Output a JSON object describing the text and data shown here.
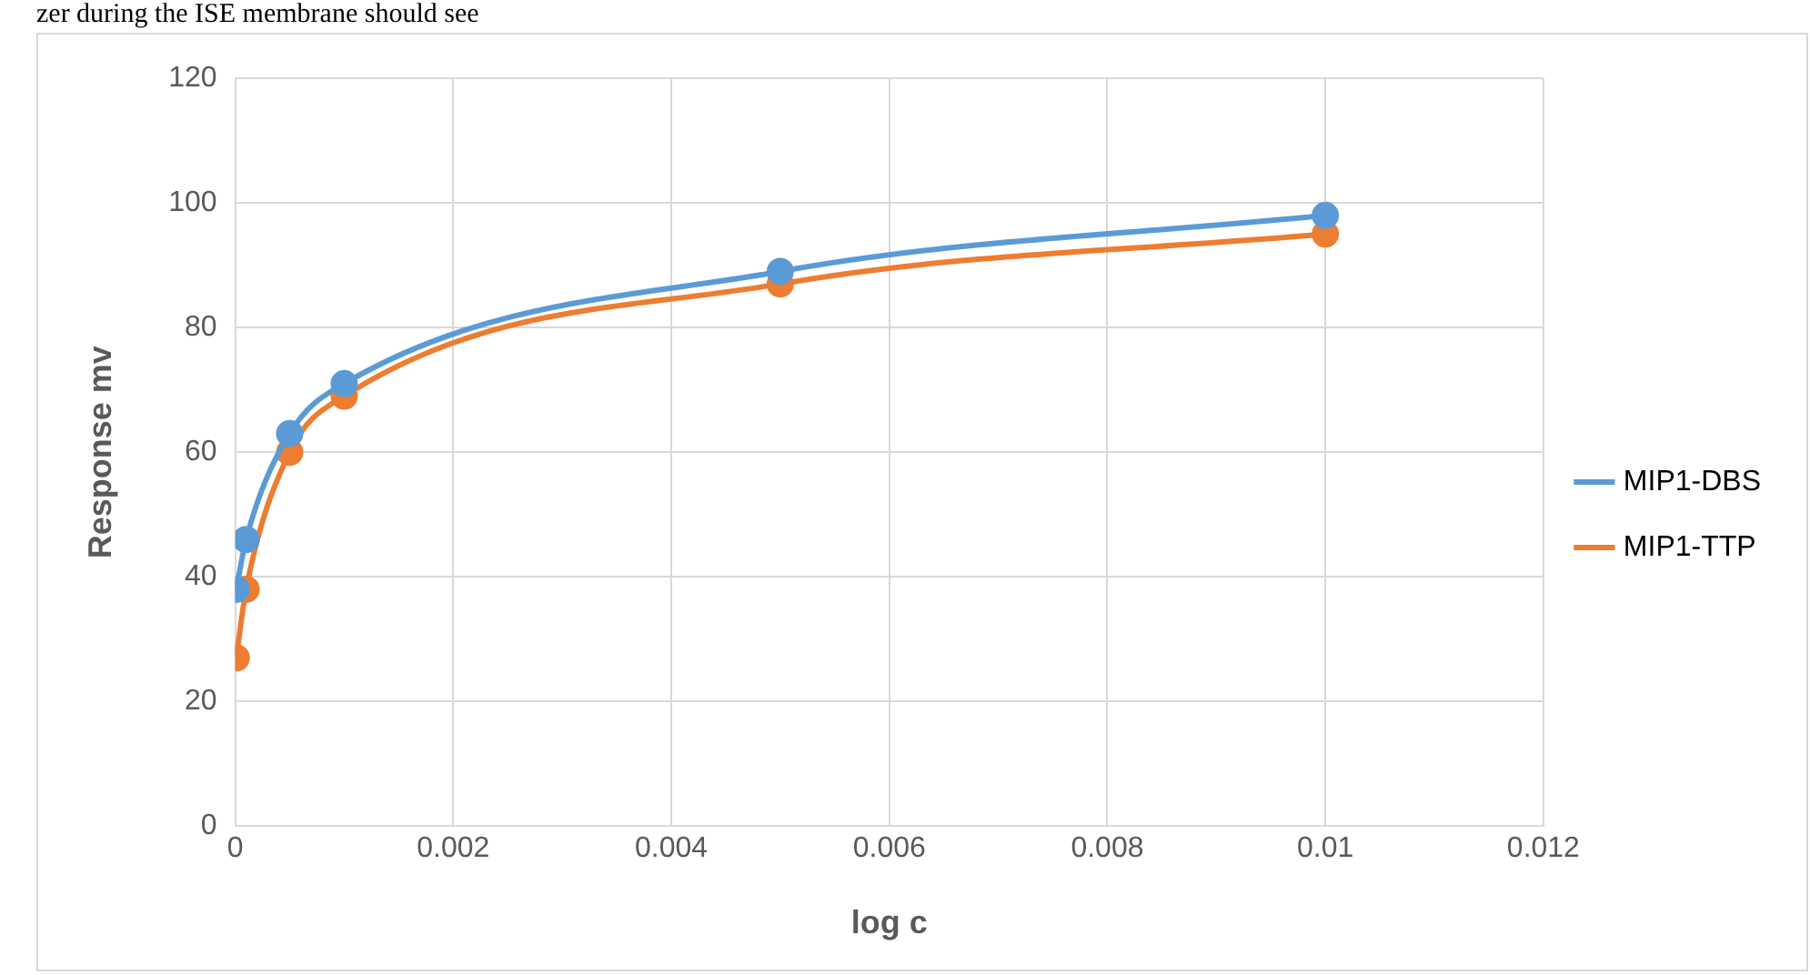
{
  "chart_data": {
    "type": "line",
    "xlabel": "log c",
    "ylabel": "Response mv",
    "annotations": [
      "zer during the ISE membrane should see"
    ],
    "x": [
      1e-05,
      0.0001,
      0.0005,
      0.001,
      0.005,
      0.01
    ],
    "series": [
      {
        "name": "MIP1-DBS",
        "color": "#5b9bd5",
        "values": [
          38,
          46,
          63,
          71,
          89,
          98
        ]
      },
      {
        "name": "MIP1-TTP",
        "color": "#ed7d31",
        "values": [
          27,
          38,
          60,
          69,
          87,
          95
        ]
      }
    ],
    "xlim": [
      0,
      0.012
    ],
    "xticks": [
      0,
      0.002,
      0.004,
      0.006,
      0.008,
      0.01,
      0.012
    ],
    "ylim": [
      0,
      120
    ],
    "yticks": [
      0,
      20,
      40,
      60,
      80,
      100,
      120
    ],
    "grid": true,
    "legend": "right",
    "marker": "circle",
    "line_style": "solid"
  }
}
